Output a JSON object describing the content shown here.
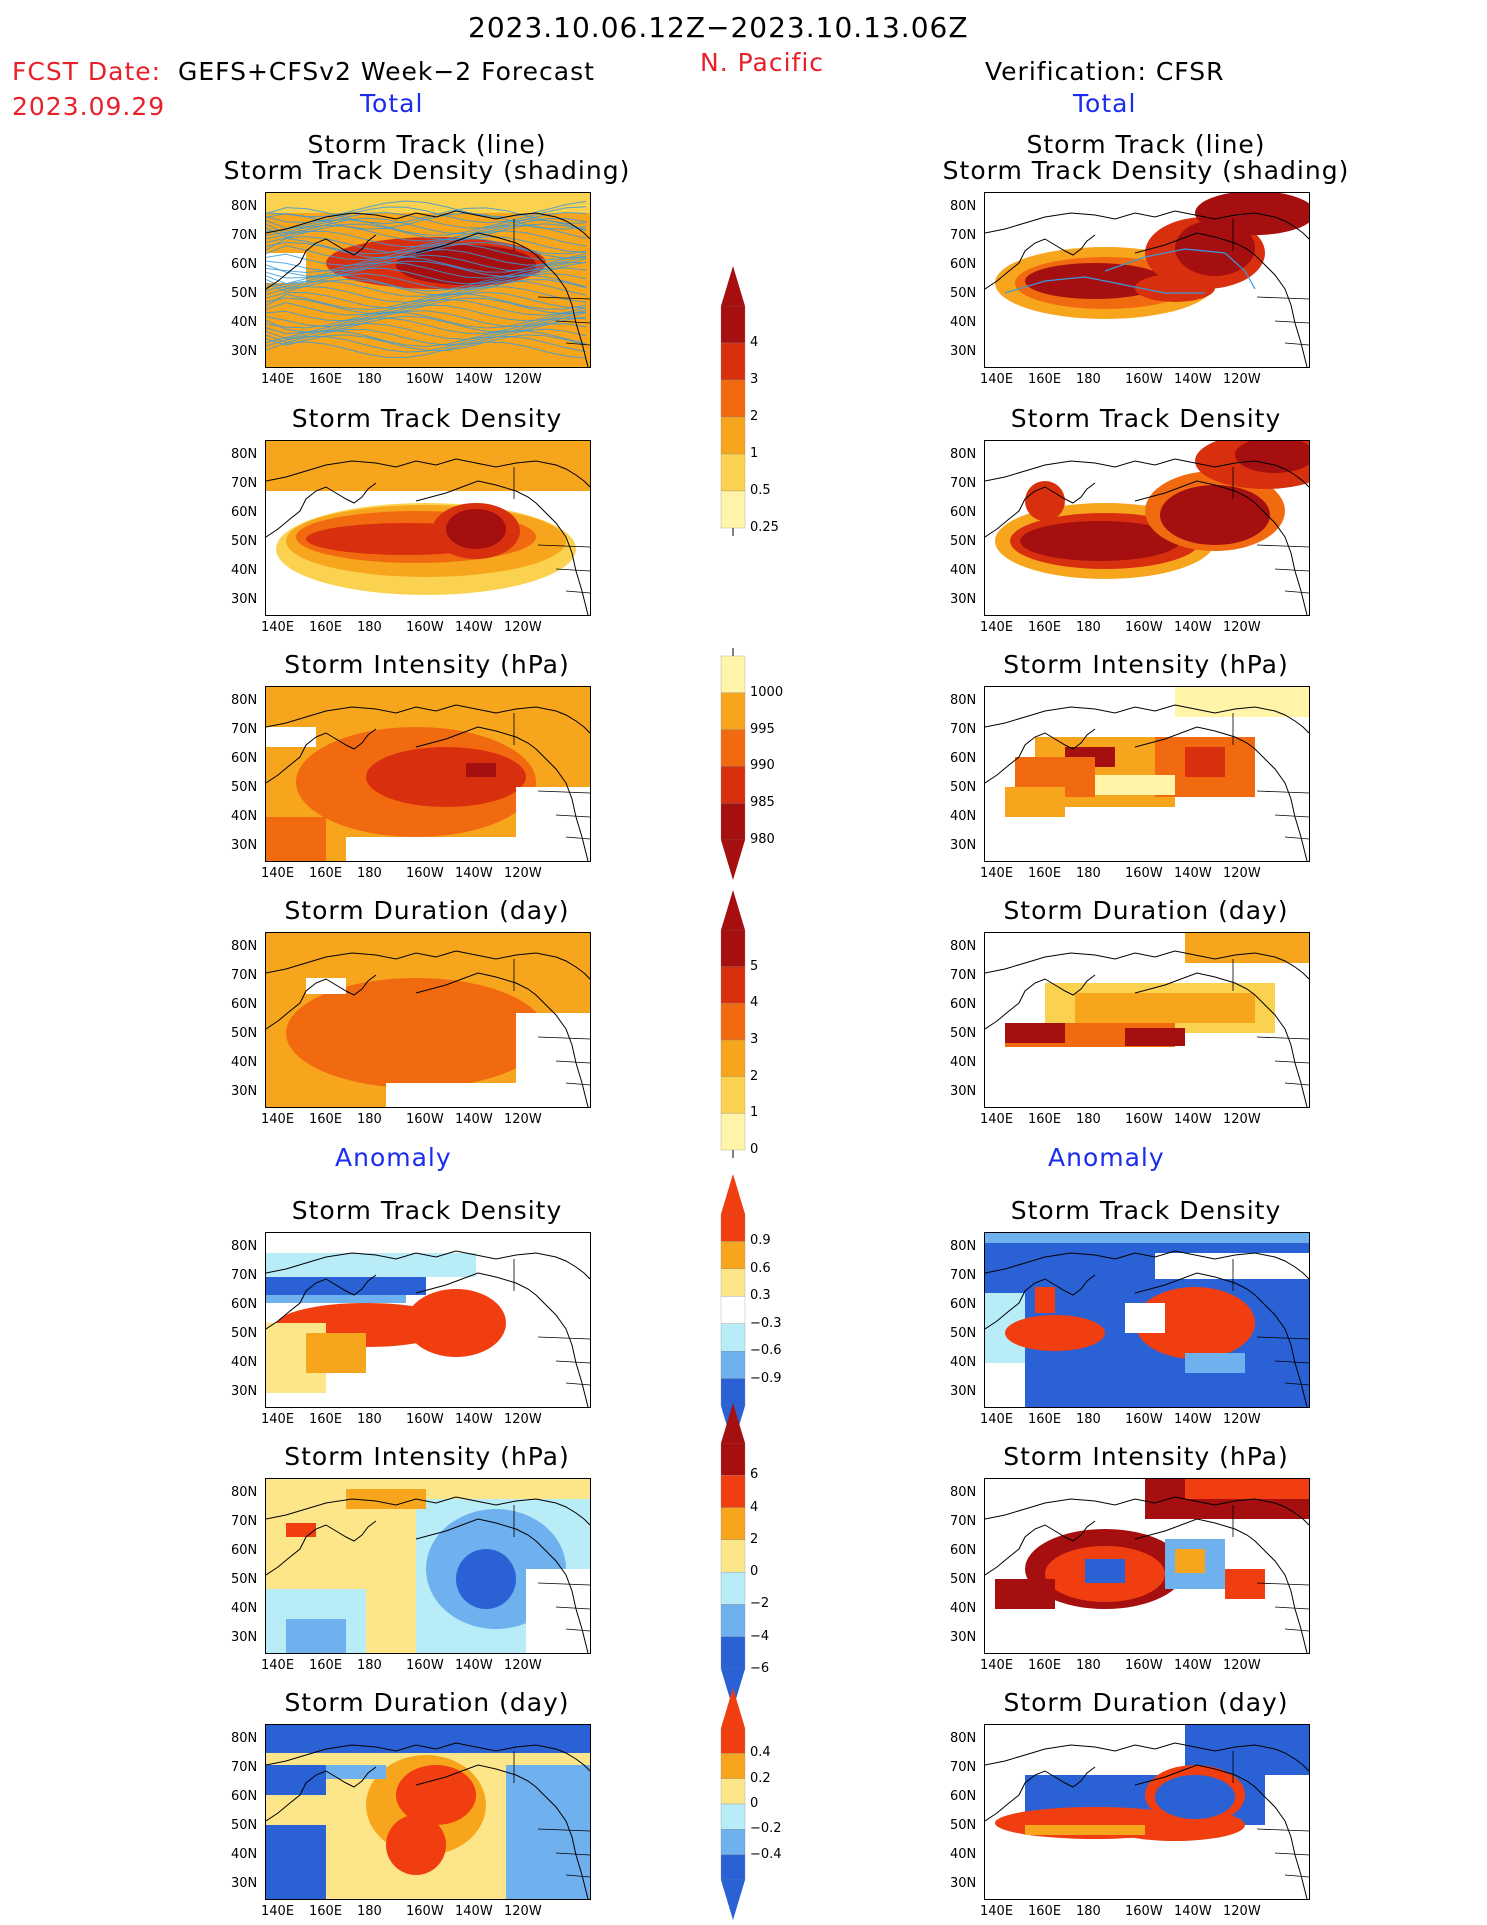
{
  "header": {
    "date_range": "2023.10.06.12Z−2023.10.13.06Z",
    "region": "N. Pacific",
    "fcst_label": "FCST Date:",
    "fcst_model": "GEFS+CFSv2 Week−2 Forecast",
    "fcst_date": "2023.09.29",
    "verification": "Verification: CFSR"
  },
  "sections": {
    "total": "Total",
    "anomaly": "Anomaly"
  },
  "panel_titles": {
    "track_line": "Storm Track (line)",
    "track_density_shading": "Storm Track Density (shading)",
    "track_density": "Storm Track Density",
    "intensity": "Storm Intensity (hPa)",
    "duration": "Storm Duration (day)"
  },
  "axes": {
    "lat_ticks": [
      "80N",
      "70N",
      "60N",
      "50N",
      "40N",
      "30N"
    ],
    "lon_ticks": [
      "140E",
      "160E",
      "180",
      "160W",
      "140W",
      "120W"
    ]
  },
  "colorbars": {
    "density": {
      "labels": [
        "4",
        "3",
        "2",
        "1",
        "0.5",
        "0.25"
      ],
      "colors": [
        "#a50f0f",
        "#d8300f",
        "#f26a10",
        "#f7a51c",
        "#fbd24f",
        "#fff4a8"
      ]
    },
    "intensity": {
      "labels": [
        "1000",
        "995",
        "990",
        "985",
        "980"
      ],
      "colors": [
        "#fff4a8",
        "#f7a51c",
        "#f26a10",
        "#d8300f",
        "#a50f0f"
      ]
    },
    "duration": {
      "labels": [
        "5",
        "4",
        "3",
        "2",
        "1",
        "0"
      ],
      "colors": [
        "#a50f0f",
        "#d8300f",
        "#f26a10",
        "#f7a51c",
        "#fbd24f",
        "#fff4a8"
      ]
    },
    "anom_density": {
      "labels": [
        "0.9",
        "0.6",
        "0.3",
        "−0.3",
        "−0.6",
        "−0.9"
      ],
      "colors": [
        "#f03e10",
        "#f7a51c",
        "#fde68a",
        "#ffffff",
        "#b8ecf7",
        "#6fb0ee",
        "#2a62d6"
      ]
    },
    "anom_intensity": {
      "labels": [
        "6",
        "4",
        "2",
        "0",
        "−2",
        "−4",
        "−6"
      ],
      "colors": [
        "#a50f0f",
        "#f03e10",
        "#f7a51c",
        "#fde68a",
        "#b8ecf7",
        "#6fb0ee",
        "#2a62d6"
      ]
    },
    "anom_duration": {
      "labels": [
        "0.4",
        "0.2",
        "0",
        "−0.2",
        "−0.4"
      ],
      "colors": [
        "#f03e10",
        "#f7a51c",
        "#fde68a",
        "#b8ecf7",
        "#6fb0ee",
        "#2a62d6"
      ]
    }
  },
  "palette": {
    "warm": [
      "#fff4a8",
      "#fbd24f",
      "#f7a51c",
      "#f26a10",
      "#d8300f",
      "#a50f0f"
    ],
    "anom_pos": [
      "#fde68a",
      "#f7a51c",
      "#f03e10",
      "#a50f0f"
    ],
    "anom_neg": [
      "#b8ecf7",
      "#6fb0ee",
      "#2a62d6"
    ],
    "track_line": "#3a9ad9"
  }
}
